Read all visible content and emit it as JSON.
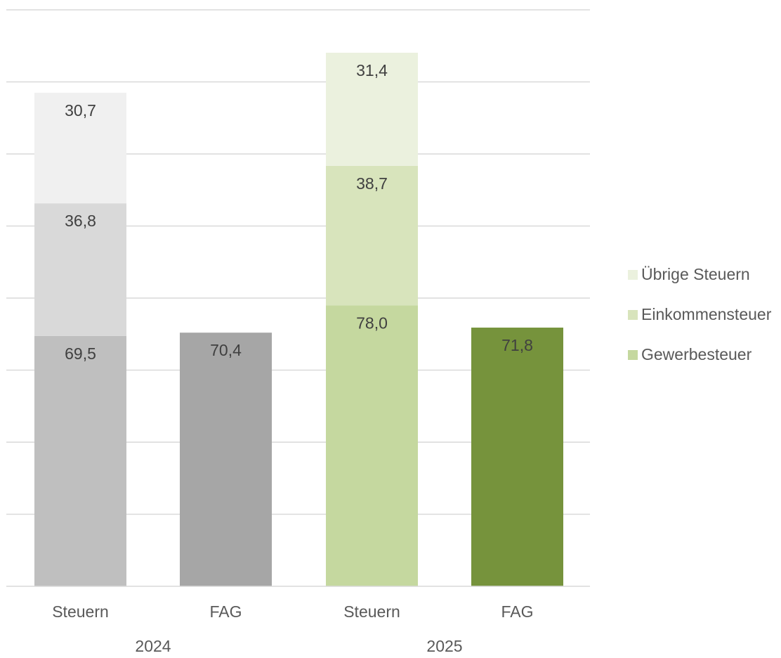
{
  "chart_data": {
    "type": "bar",
    "stacked": true,
    "groups": [
      {
        "label": "2024",
        "categories": [
          "Steuern",
          "FAG"
        ]
      },
      {
        "label": "2025",
        "categories": [
          "Steuern",
          "FAG"
        ]
      }
    ],
    "bars": [
      {
        "group": "2024",
        "category": "Steuern",
        "segments": [
          {
            "series": "Gewerbesteuer",
            "value": 69.5,
            "label": "69,5",
            "color": "#bfbfbf"
          },
          {
            "series": "Einkommensteuer",
            "value": 36.8,
            "label": "36,8",
            "color": "#d9d9d9"
          },
          {
            "series": "Übrige Steuern",
            "value": 30.7,
            "label": "30,7",
            "color": "#f0f0f0"
          }
        ]
      },
      {
        "group": "2024",
        "category": "FAG",
        "segments": [
          {
            "series": "",
            "value": 70.4,
            "label": "70,4",
            "color": "#a6a6a6"
          }
        ]
      },
      {
        "group": "2025",
        "category": "Steuern",
        "segments": [
          {
            "series": "Gewerbesteuer",
            "value": 78.0,
            "label": "78,0",
            "color": "#c5d89f"
          },
          {
            "series": "Einkommensteuer",
            "value": 38.7,
            "label": "38,7",
            "color": "#d8e4bc"
          },
          {
            "series": "Übrige Steuern",
            "value": 31.4,
            "label": "31,4",
            "color": "#ebf1de"
          }
        ]
      },
      {
        "group": "2025",
        "category": "FAG",
        "segments": [
          {
            "series": "",
            "value": 71.8,
            "label": "71,8",
            "color": "#76933c"
          }
        ]
      }
    ],
    "legend": {
      "position": "right",
      "items": [
        {
          "name": "Übrige Steuern",
          "color": "#ebf1de"
        },
        {
          "name": "Einkommensteuer",
          "color": "#d8e4bc"
        },
        {
          "name": "Gewerbesteuer",
          "color": "#c5d89f"
        }
      ]
    },
    "ylim": [
      0,
      160
    ],
    "gridline_step": 20,
    "grid": true,
    "title": "",
    "xlabel": "",
    "ylabel": ""
  }
}
